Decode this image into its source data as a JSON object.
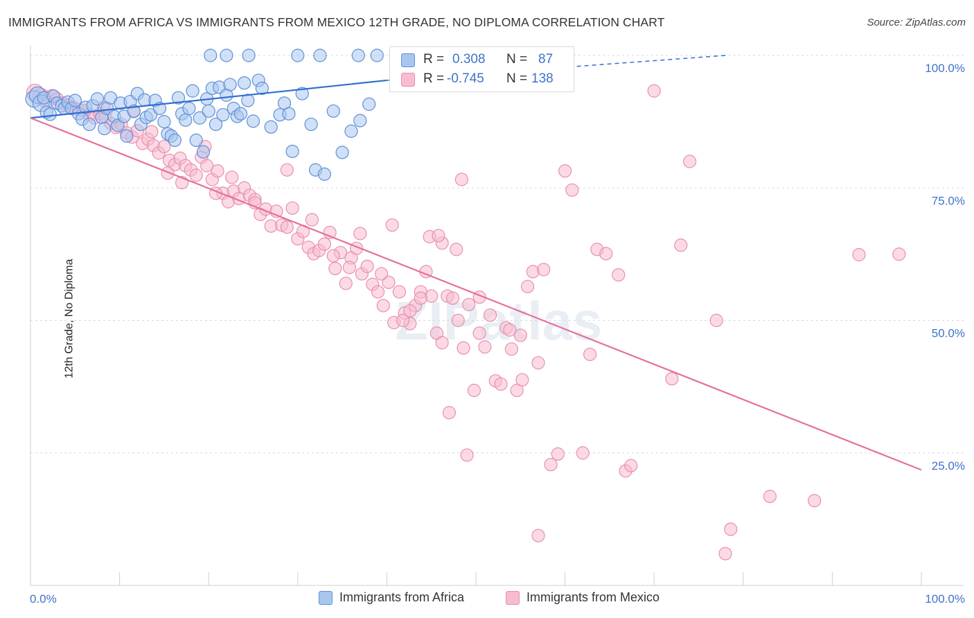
{
  "header": {
    "title": "IMMIGRANTS FROM AFRICA VS IMMIGRANTS FROM MEXICO 12TH GRADE, NO DIPLOMA CORRELATION CHART",
    "source": "Source: ZipAtlas.com"
  },
  "watermark": "ZIPatlas",
  "colors": {
    "africa_fill": "#a9c6ee",
    "africa_stroke": "#5e8fd8",
    "africa_line": "#2f6fd0",
    "mexico_fill": "#f7bcd0",
    "mexico_stroke": "#e88fae",
    "mexico_line": "#e5709a",
    "tick_label": "#3f72c9"
  },
  "stats": [
    {
      "r_label": "R =",
      "r_value": "0.308",
      "n_label": "N =",
      "n_value": "87"
    },
    {
      "r_label": "R =",
      "r_value": "-0.745",
      "n_label": "N =",
      "n_value": "138"
    }
  ],
  "legend": [
    {
      "label": "Immigrants from Africa"
    },
    {
      "label": "Immigrants from Mexico"
    }
  ],
  "chart_data": {
    "type": "scatter",
    "title": "IMMIGRANTS FROM AFRICA VS IMMIGRANTS FROM MEXICO 12TH GRADE, NO DIPLOMA CORRELATION CHART",
    "xlabel": "",
    "ylabel": "12th Grade, No Diploma",
    "xlim": [
      0,
      100
    ],
    "ylim": [
      0,
      100
    ],
    "x_tick_labels": [
      {
        "value": 0,
        "label": "0.0%"
      },
      {
        "value": 100,
        "label": "100.0%"
      }
    ],
    "y_tick_labels": [
      {
        "value": 25,
        "label": "25.0%"
      },
      {
        "value": 50,
        "label": "50.0%"
      },
      {
        "value": 75,
        "label": "75.0%"
      },
      {
        "value": 100,
        "label": "100.0%"
      }
    ],
    "grid": "horizontal dashed",
    "legend_position": "bottom-center",
    "series": [
      {
        "name": "Immigrants from Africa",
        "trend": {
          "x": [
            0,
            40
          ],
          "y": [
            88.2,
            95.3
          ],
          "dashed_to": [
            78,
            100
          ]
        },
        "points": [
          [
            0.4,
            91.8
          ],
          [
            0.8,
            92.5
          ],
          [
            1.2,
            91.0
          ],
          [
            1.5,
            92.0
          ],
          [
            1.8,
            89.3
          ],
          [
            2.2,
            88.9
          ],
          [
            2.6,
            92.3
          ],
          [
            3.0,
            91.0
          ],
          [
            3.5,
            90.5
          ],
          [
            3.8,
            90.0
          ],
          [
            4.2,
            91.2
          ],
          [
            4.6,
            90.0
          ],
          [
            5.0,
            91.5
          ],
          [
            5.4,
            89.0
          ],
          [
            5.8,
            88.0
          ],
          [
            6.2,
            90.2
          ],
          [
            6.6,
            87.0
          ],
          [
            7.0,
            90.5
          ],
          [
            7.5,
            91.8
          ],
          [
            8.0,
            88.3
          ],
          [
            8.3,
            86.2
          ],
          [
            8.6,
            90.0
          ],
          [
            9.0,
            92.0
          ],
          [
            9.4,
            88.5
          ],
          [
            9.8,
            86.8
          ],
          [
            10.1,
            91.0
          ],
          [
            10.5,
            88.5
          ],
          [
            10.8,
            84.8
          ],
          [
            11.2,
            91.3
          ],
          [
            11.6,
            89.5
          ],
          [
            12.0,
            92.8
          ],
          [
            12.4,
            87.0
          ],
          [
            12.8,
            91.6
          ],
          [
            13.0,
            88.3
          ],
          [
            13.5,
            88.8
          ],
          [
            14.0,
            91.5
          ],
          [
            14.5,
            90.0
          ],
          [
            15.0,
            87.5
          ],
          [
            15.4,
            85.2
          ],
          [
            15.8,
            84.8
          ],
          [
            16.2,
            84.0
          ],
          [
            16.6,
            92.0
          ],
          [
            17.0,
            89.0
          ],
          [
            17.4,
            87.8
          ],
          [
            17.8,
            90.0
          ],
          [
            18.2,
            93.3
          ],
          [
            18.6,
            84.0
          ],
          [
            19.0,
            88.2
          ],
          [
            19.4,
            81.8
          ],
          [
            19.8,
            91.8
          ],
          [
            20.0,
            89.5
          ],
          [
            20.4,
            93.8
          ],
          [
            20.8,
            87.0
          ],
          [
            21.2,
            94.0
          ],
          [
            21.6,
            88.8
          ],
          [
            22.0,
            92.5
          ],
          [
            22.4,
            94.5
          ],
          [
            22.8,
            90.0
          ],
          [
            23.2,
            88.5
          ],
          [
            23.6,
            89.0
          ],
          [
            24.0,
            94.8
          ],
          [
            24.4,
            91.5
          ],
          [
            25.0,
            87.6
          ],
          [
            25.6,
            95.3
          ],
          [
            26.0,
            93.8
          ],
          [
            27.0,
            86.5
          ],
          [
            28.0,
            88.8
          ],
          [
            28.5,
            91.0
          ],
          [
            29.0,
            89.0
          ],
          [
            29.4,
            81.9
          ],
          [
            30.5,
            92.8
          ],
          [
            31.5,
            87.0
          ],
          [
            32.0,
            78.4
          ],
          [
            33.0,
            77.6
          ],
          [
            34.0,
            89.5
          ],
          [
            35.0,
            81.7
          ],
          [
            36.0,
            85.7
          ],
          [
            37.0,
            87.7
          ],
          [
            38.0,
            90.8
          ],
          [
            20.2,
            100
          ],
          [
            22.0,
            100
          ],
          [
            24.5,
            100
          ],
          [
            30.0,
            100
          ],
          [
            32.5,
            100
          ],
          [
            36.8,
            100
          ],
          [
            38.9,
            100
          ],
          [
            41.0,
            100
          ]
        ]
      },
      {
        "name": "Immigrants from Mexico",
        "trend": {
          "x": [
            0,
            100
          ],
          "y": [
            88.2,
            21.8
          ]
        },
        "points": [
          [
            0.5,
            93.0
          ],
          [
            1.2,
            92.2
          ],
          [
            1.8,
            91.6
          ],
          [
            2.4,
            92.4
          ],
          [
            3.0,
            91.8
          ],
          [
            3.6,
            91.0
          ],
          [
            4.2,
            90.6
          ],
          [
            4.8,
            90.2
          ],
          [
            5.4,
            89.8
          ],
          [
            6.0,
            89.6
          ],
          [
            6.6,
            88.8
          ],
          [
            7.2,
            88.2
          ],
          [
            7.8,
            89.0
          ],
          [
            8.4,
            88.4
          ],
          [
            9.0,
            87.2
          ],
          [
            9.6,
            86.4
          ],
          [
            10.2,
            87.0
          ],
          [
            10.8,
            85.4
          ],
          [
            11.4,
            84.6
          ],
          [
            12.0,
            85.8
          ],
          [
            12.6,
            83.4
          ],
          [
            13.2,
            84.2
          ],
          [
            13.8,
            83.0
          ],
          [
            14.4,
            81.6
          ],
          [
            15.0,
            82.8
          ],
          [
            15.6,
            80.2
          ],
          [
            16.2,
            79.4
          ],
          [
            16.8,
            80.6
          ],
          [
            17.4,
            79.2
          ],
          [
            18.0,
            78.4
          ],
          [
            18.6,
            77.4
          ],
          [
            19.2,
            80.8
          ],
          [
            19.8,
            79.2
          ],
          [
            20.4,
            76.6
          ],
          [
            21.0,
            78.2
          ],
          [
            21.6,
            74.0
          ],
          [
            22.2,
            72.4
          ],
          [
            22.8,
            74.4
          ],
          [
            23.4,
            73.0
          ],
          [
            24.0,
            75.0
          ],
          [
            24.6,
            73.6
          ],
          [
            25.2,
            72.8
          ],
          [
            25.8,
            70.0
          ],
          [
            26.4,
            71.0
          ],
          [
            27.0,
            67.8
          ],
          [
            27.6,
            70.6
          ],
          [
            28.2,
            68.0
          ],
          [
            28.8,
            67.6
          ],
          [
            29.4,
            71.2
          ],
          [
            30.0,
            65.4
          ],
          [
            30.6,
            66.8
          ],
          [
            31.2,
            63.8
          ],
          [
            31.8,
            62.6
          ],
          [
            32.4,
            63.2
          ],
          [
            33.0,
            64.4
          ],
          [
            33.6,
            66.6
          ],
          [
            34.2,
            59.8
          ],
          [
            34.8,
            62.8
          ],
          [
            35.4,
            57.0
          ],
          [
            36.0,
            61.8
          ],
          [
            36.6,
            63.6
          ],
          [
            37.2,
            58.8
          ],
          [
            37.8,
            60.2
          ],
          [
            38.4,
            56.8
          ],
          [
            39.0,
            55.4
          ],
          [
            39.6,
            52.8
          ],
          [
            40.2,
            57.2
          ],
          [
            40.8,
            49.6
          ],
          [
            41.4,
            55.4
          ],
          [
            42.0,
            51.4
          ],
          [
            42.6,
            49.4
          ],
          [
            43.2,
            52.8
          ],
          [
            43.8,
            55.4
          ],
          [
            44.4,
            59.2
          ],
          [
            45.0,
            54.6
          ],
          [
            45.6,
            47.6
          ],
          [
            46.2,
            45.8
          ],
          [
            46.8,
            54.6
          ],
          [
            47.4,
            54.2
          ],
          [
            48.0,
            50.0
          ],
          [
            48.6,
            44.8
          ],
          [
            49.2,
            53.0
          ],
          [
            49.8,
            36.8
          ],
          [
            50.4,
            47.6
          ],
          [
            51.0,
            45.0
          ],
          [
            51.6,
            51.0
          ],
          [
            52.2,
            38.6
          ],
          [
            52.8,
            38.0
          ],
          [
            53.4,
            48.6
          ],
          [
            54.0,
            44.6
          ],
          [
            54.6,
            36.8
          ],
          [
            55.2,
            38.8
          ],
          [
            55.8,
            56.4
          ],
          [
            56.4,
            59.2
          ],
          [
            57.0,
            42.0
          ],
          [
            57.6,
            59.6
          ],
          [
            58.4,
            22.8
          ],
          [
            59.2,
            24.8
          ],
          [
            60.0,
            78.2
          ],
          [
            60.8,
            74.6
          ],
          [
            62.0,
            25.0
          ],
          [
            62.8,
            43.6
          ],
          [
            63.6,
            63.4
          ],
          [
            64.6,
            62.6
          ],
          [
            66.0,
            58.6
          ],
          [
            66.8,
            21.6
          ],
          [
            67.4,
            22.6
          ],
          [
            70.0,
            93.3
          ],
          [
            72.0,
            39.0
          ],
          [
            73.0,
            64.2
          ],
          [
            74.0,
            80.0
          ],
          [
            77.0,
            50.0
          ],
          [
            78.0,
            6.0
          ],
          [
            78.6,
            10.6
          ],
          [
            83.0,
            16.8
          ],
          [
            88.0,
            16.0
          ],
          [
            93.0,
            62.4
          ],
          [
            97.5,
            62.5
          ],
          [
            28.8,
            78.4
          ],
          [
            34.0,
            62.2
          ],
          [
            39.4,
            58.8
          ],
          [
            44.8,
            65.8
          ],
          [
            46.2,
            64.6
          ],
          [
            47.8,
            63.4
          ],
          [
            41.8,
            50.0
          ],
          [
            43.8,
            54.2
          ],
          [
            50.4,
            54.4
          ],
          [
            55.0,
            47.2
          ],
          [
            25.2,
            72.2
          ],
          [
            19.6,
            82.8
          ],
          [
            15.4,
            77.8
          ],
          [
            17.0,
            76.0
          ],
          [
            20.8,
            74.0
          ],
          [
            11.6,
            89.4
          ],
          [
            13.6,
            85.6
          ],
          [
            8.2,
            90.2
          ],
          [
            35.8,
            60.0
          ],
          [
            31.6,
            69.0
          ],
          [
            37.0,
            66.4
          ],
          [
            42.6,
            51.8
          ],
          [
            53.8,
            48.2
          ],
          [
            45.8,
            66.0
          ],
          [
            48.4,
            76.6
          ],
          [
            40.6,
            68.0
          ],
          [
            47.0,
            32.6
          ],
          [
            49.0,
            24.6
          ],
          [
            57.0,
            9.4
          ],
          [
            22.6,
            77.0
          ]
        ]
      }
    ]
  }
}
